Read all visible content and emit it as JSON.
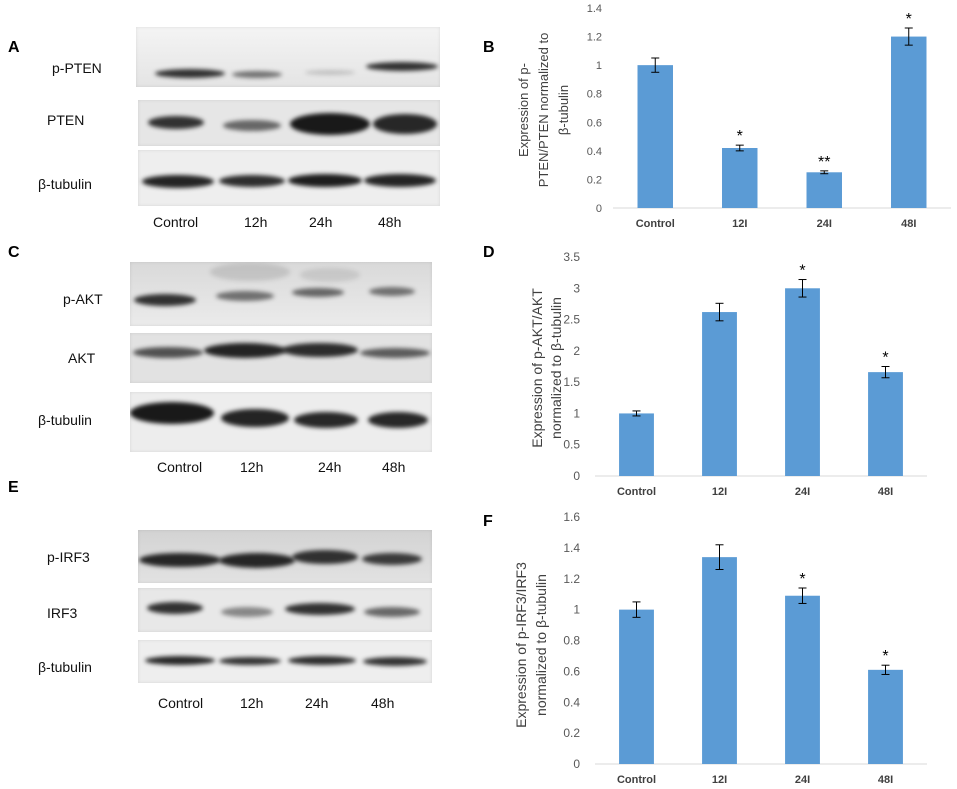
{
  "blot_panels": [
    {
      "letter": "A",
      "rows": [
        "p-PTEN",
        "PTEN",
        "β-tubulin"
      ],
      "lanes": [
        "Control",
        "12h",
        "24h",
        "48h"
      ]
    },
    {
      "letter": "C",
      "rows": [
        "p-AKT",
        "AKT",
        "β-tubulin"
      ],
      "lanes": [
        "Control",
        "12h",
        "24h",
        "48h"
      ]
    },
    {
      "letter": "E",
      "rows": [
        "p-IRF3",
        "IRF3",
        "β-tubulin"
      ],
      "lanes": [
        "Control",
        "12h",
        "24h",
        "48h"
      ]
    }
  ],
  "chart_data": [
    {
      "panel": "B",
      "type": "bar",
      "categories": [
        "Control",
        "12I",
        "24I",
        "48I"
      ],
      "values": [
        1,
        0.42,
        0.25,
        1.2
      ],
      "error": [
        0.05,
        0.02,
        0.01,
        0.06
      ],
      "significance": [
        null,
        "*",
        "**",
        "*"
      ],
      "ylabel": [
        "Expression of p-",
        "PTEN/PTEN normalized to",
        "β-tubulin"
      ],
      "ylim": [
        0,
        1.4
      ],
      "yticks": [
        0,
        0.2,
        0.4,
        0.6,
        0.8,
        1,
        1.2,
        1.4
      ],
      "grid": false,
      "bar_color": "#5b9bd5"
    },
    {
      "panel": "D",
      "type": "bar",
      "categories": [
        "Control",
        "12I",
        "24I",
        "48I"
      ],
      "values": [
        1,
        2.62,
        3,
        1.66
      ],
      "error": [
        0.04,
        0.14,
        0.14,
        0.09
      ],
      "significance": [
        null,
        null,
        "*",
        "*"
      ],
      "ylabel": [
        "Expression of p-AKT/AKT",
        "normalized to β-tubulin"
      ],
      "ylim": [
        0,
        3.5
      ],
      "yticks": [
        0,
        0.5,
        1,
        1.5,
        2,
        2.5,
        3,
        3.5
      ],
      "grid": false,
      "bar_color": "#5b9bd5"
    },
    {
      "panel": "F",
      "type": "bar",
      "categories": [
        "Control",
        "12I",
        "24I",
        "48I"
      ],
      "values": [
        1,
        1.34,
        1.09,
        0.61
      ],
      "error": [
        0.05,
        0.08,
        0.05,
        0.03
      ],
      "significance": [
        null,
        null,
        "*",
        "*"
      ],
      "ylabel": [
        "Expression of p-IRF3/IRF3",
        "normalized to β-tubulin"
      ],
      "ylim": [
        0,
        1.6
      ],
      "yticks": [
        0,
        0.2,
        0.4,
        0.6,
        0.8,
        1,
        1.2,
        1.4,
        1.6
      ],
      "grid": false,
      "bar_color": "#5b9bd5"
    }
  ]
}
